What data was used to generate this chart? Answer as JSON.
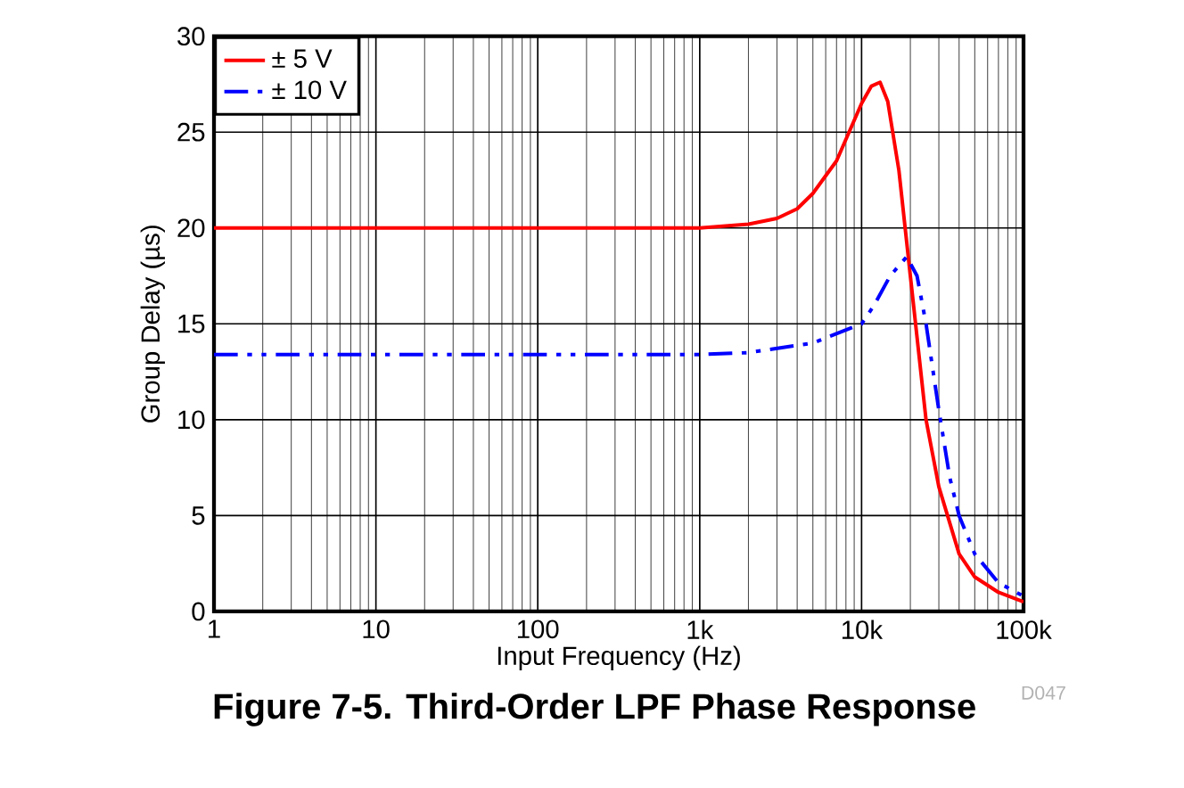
{
  "chart_data": {
    "type": "line",
    "title": "Figure 7-5. Third-Order LPF Phase Response",
    "xlabel": "Input Frequency (Hz)",
    "ylabel": "Group Delay (µs)",
    "annotations": [
      "D047"
    ],
    "log": "x",
    "grid": true,
    "legend": "top left",
    "xlim": [
      1,
      100000
    ],
    "ylim": [
      0,
      30
    ],
    "xticks": [
      1,
      10,
      100,
      {
        "value": 1000,
        "label": "1k"
      },
      {
        "value": 10000,
        "label": "10k"
      },
      {
        "value": 100000,
        "label": "100k"
      }
    ],
    "yticks": [
      0,
      5,
      10,
      15,
      20,
      25,
      30
    ],
    "series": [
      {
        "name": "± 5 V",
        "color": "#ff0000",
        "line_style": "solid",
        "x": [
          1,
          10,
          100,
          1000,
          2000,
          3000,
          4000,
          5000,
          7000,
          10000,
          11500,
          13000,
          14500,
          17000,
          20000,
          25000,
          30000,
          40000,
          50000,
          70000,
          100000
        ],
        "values": [
          20,
          20,
          20,
          20,
          20.2,
          20.5,
          21,
          21.8,
          23.5,
          26.5,
          27.4,
          27.6,
          26.6,
          23,
          17.5,
          10,
          6.5,
          3,
          1.8,
          1,
          0.5
        ]
      },
      {
        "name": "± 10 V",
        "color": "#0000ff",
        "line_style": "dashed",
        "x": [
          1,
          10,
          100,
          1000,
          2000,
          5000,
          10000,
          12000,
          15000,
          19000,
          22000,
          25000,
          30000,
          35000,
          40000,
          50000,
          70000,
          100000
        ],
        "values": [
          13.4,
          13.4,
          13.4,
          13.4,
          13.5,
          14,
          15,
          16,
          17.5,
          18.5,
          17.5,
          15,
          10.5,
          7,
          5,
          3,
          1.5,
          0.8
        ]
      }
    ]
  }
}
